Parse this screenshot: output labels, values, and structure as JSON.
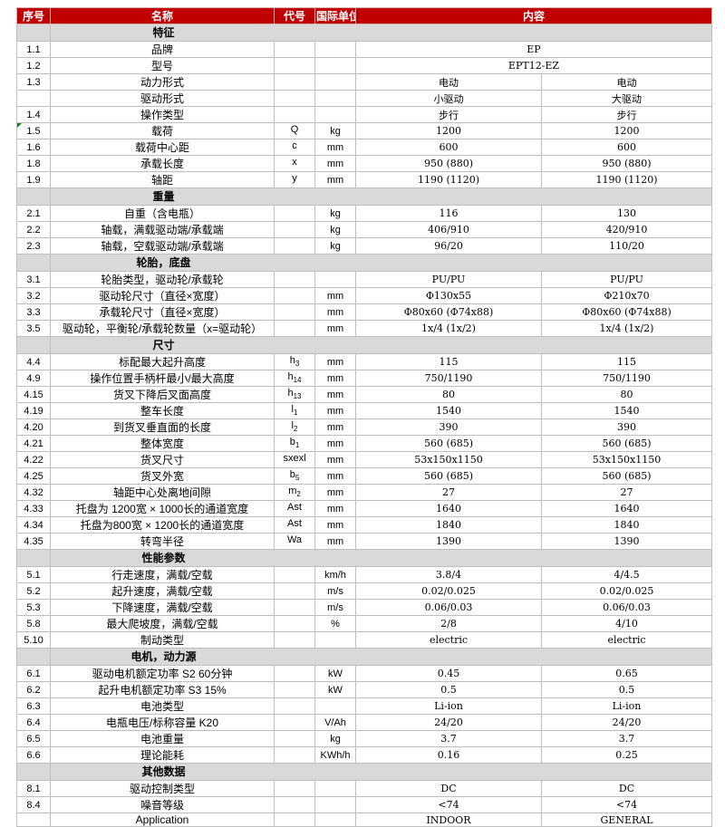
{
  "colors": {
    "header_bg": "#c00000",
    "header_text": "#ffffff",
    "section_bg": "#d9d9d9",
    "grid_border": "#bfbfbf",
    "comment_marker_green": "#1e7b1e"
  },
  "table": {
    "columns": [
      "序号",
      "名称",
      "代号",
      "国际单位",
      "内容"
    ],
    "sections": [
      {
        "title": "特征",
        "rows": [
          {
            "no": "1.1",
            "name": "品牌",
            "code": "",
            "unit": "",
            "values": [
              "EP"
            ]
          },
          {
            "no": "1.2",
            "name": "型号",
            "code": "",
            "unit": "",
            "values": [
              "EPT12-EZ"
            ]
          },
          {
            "no": "1.3",
            "name": "动力形式",
            "code": "",
            "unit": "",
            "values": [
              "电动",
              "电动"
            ]
          },
          {
            "no": "",
            "name": "驱动形式",
            "code": "",
            "unit": "",
            "values": [
              "小驱动",
              "大驱动"
            ]
          },
          {
            "no": "1.4",
            "name": "操作类型",
            "code": "",
            "unit": "",
            "values": [
              "步行",
              "步行"
            ]
          },
          {
            "no": "1.5",
            "name": "载荷",
            "code": "Q",
            "unit": "kg",
            "values": [
              "1200",
              "1200"
            ],
            "marker": true
          },
          {
            "no": "1.6",
            "name": "载荷中心距",
            "code": "c",
            "unit": "mm",
            "values": [
              "600",
              "600"
            ]
          },
          {
            "no": "1.8",
            "name": "承载长度",
            "code": "x",
            "unit": "mm",
            "values": [
              "950 (880)",
              "950 (880)"
            ]
          },
          {
            "no": "1.9",
            "name": "轴距",
            "code": "y",
            "unit": "mm",
            "values": [
              "1190 (1120)",
              "1190 (1120)"
            ]
          }
        ]
      },
      {
        "title": "重量",
        "rows": [
          {
            "no": "2.1",
            "name": "自重（含电瓶）",
            "code": "",
            "unit": "kg",
            "values": [
              "116",
              "130"
            ]
          },
          {
            "no": "2.2",
            "name": "轴载，满载驱动端/承载端",
            "code": "",
            "unit": "kg",
            "values": [
              "406/910",
              "420/910"
            ]
          },
          {
            "no": "2.3",
            "name": "轴载，空载驱动端/承载端",
            "code": "",
            "unit": "kg",
            "values": [
              "96/20",
              "110/20"
            ]
          }
        ]
      },
      {
        "title": "轮胎，底盘",
        "rows": [
          {
            "no": "3.1",
            "name": "轮胎类型，驱动轮/承载轮",
            "code": "",
            "unit": "",
            "values": [
              "PU/PU",
              "PU/PU"
            ]
          },
          {
            "no": "3.2",
            "name": "驱动轮尺寸（直径×宽度）",
            "code": "",
            "unit": "mm",
            "values": [
              "Φ130x55",
              "Φ210x70"
            ]
          },
          {
            "no": "3.3",
            "name": "承载轮尺寸（直径×宽度）",
            "code": "",
            "unit": "mm",
            "values": [
              "Φ80x60 (Φ74x88)",
              "Φ80x60 (Φ74x88)"
            ]
          },
          {
            "no": "3.5",
            "name": "驱动轮，平衡轮/承载轮数量（x=驱动轮）",
            "code": "",
            "unit": "mm",
            "values": [
              "1x/4 (1x/2)",
              "1x/4 (1x/2)"
            ]
          }
        ]
      },
      {
        "title": "尺寸",
        "rows": [
          {
            "no": "4.4",
            "name": "标配最大起升高度",
            "code": "h",
            "sub": "3",
            "unit": "mm",
            "values": [
              "115",
              "115"
            ]
          },
          {
            "no": "4.9",
            "name": "操作位置手柄杆最小/最大高度",
            "code": "h",
            "sub": "14",
            "unit": "mm",
            "values": [
              "750/1190",
              "750/1190"
            ]
          },
          {
            "no": "4.15",
            "name": "货叉下降后叉面高度",
            "code": "h",
            "sub": "13",
            "unit": "mm",
            "values": [
              "80",
              "80"
            ]
          },
          {
            "no": "4.19",
            "name": "整车长度",
            "code": "l",
            "sub": "1",
            "unit": "mm",
            "values": [
              "1540",
              "1540"
            ]
          },
          {
            "no": "4.20",
            "name": "到货叉垂直面的长度",
            "code": "l",
            "sub": "2",
            "unit": "mm",
            "values": [
              "390",
              "390"
            ]
          },
          {
            "no": "4.21",
            "name": "整体宽度",
            "code": "b",
            "sub": "1",
            "unit": "mm",
            "values": [
              "560 (685)",
              "560 (685)"
            ]
          },
          {
            "no": "4.22",
            "name": "货叉尺寸",
            "code": "sxexl",
            "unit": "mm",
            "values": [
              "53x150x1150",
              "53x150x1150"
            ]
          },
          {
            "no": "4.25",
            "name": "货叉外宽",
            "code": "b",
            "sub": "5",
            "unit": "mm",
            "values": [
              "560 (685)",
              "560 (685)"
            ]
          },
          {
            "no": "4.32",
            "name": "轴距中心处离地间隙",
            "code": "m",
            "sub": "2",
            "unit": "mm",
            "values": [
              "27",
              "27"
            ]
          },
          {
            "no": "4.33",
            "name": "托盘为 1200宽 × 1000长的通道宽度",
            "code": "Ast",
            "unit": "mm",
            "values": [
              "1640",
              "1640"
            ]
          },
          {
            "no": "4.34",
            "name": "托盘为800宽 × 1200长的通道宽度",
            "code": "Ast",
            "unit": "mm",
            "values": [
              "1840",
              "1840"
            ]
          },
          {
            "no": "4.35",
            "name": "转弯半径",
            "code": "Wa",
            "unit": "mm",
            "values": [
              "1390",
              "1390"
            ]
          }
        ]
      },
      {
        "title": "性能参数",
        "rows": [
          {
            "no": "5.1",
            "name": "行走速度，满载/空载",
            "code": "",
            "unit": "km/h",
            "values": [
              "3.8/4",
              "4/4.5"
            ]
          },
          {
            "no": "5.2",
            "name": "起升速度，满载/空载",
            "code": "",
            "unit": "m/s",
            "values": [
              "0.02/0.025",
              "0.02/0.025"
            ]
          },
          {
            "no": "5.3",
            "name": "下降速度，满载/空载",
            "code": "",
            "unit": "m/s",
            "values": [
              "0.06/0.03",
              "0.06/0.03"
            ]
          },
          {
            "no": "5.8",
            "name": "最大爬坡度，满载/空载",
            "code": "",
            "unit": "%",
            "values": [
              "2/8",
              "4/10"
            ]
          },
          {
            "no": "5.10",
            "name": "制动类型",
            "code": "",
            "unit": "",
            "values": [
              "electric",
              "electric"
            ]
          }
        ]
      },
      {
        "title": "电机，动力源",
        "rows": [
          {
            "no": "6.1",
            "name": "驱动电机额定功率 S2 60分钟",
            "code": "",
            "unit": "kW",
            "values": [
              "0.45",
              "0.65"
            ]
          },
          {
            "no": "6.2",
            "name": "起升电机额定功率 S3 15%",
            "code": "",
            "unit": "kW",
            "values": [
              "0.5",
              "0.5"
            ]
          },
          {
            "no": "6.3",
            "name": "电池类型",
            "code": "",
            "unit": "",
            "values": [
              "Li-ion",
              "Li-ion"
            ]
          },
          {
            "no": "6.4",
            "name": "电瓶电压/标称容量 K20",
            "code": "",
            "unit": "V/Ah",
            "values": [
              "24/20",
              "24/20"
            ]
          },
          {
            "no": "6.5",
            "name": "电池重量",
            "code": "",
            "unit": "kg",
            "values": [
              "3.7",
              "3.7"
            ]
          },
          {
            "no": "6.6",
            "name": "理论能耗",
            "code": "",
            "unit": "KWh/h",
            "values": [
              "0.16",
              "0.25"
            ]
          }
        ]
      },
      {
        "title": "其他数据",
        "rows": [
          {
            "no": "8.1",
            "name": "驱动控制类型",
            "code": "",
            "unit": "",
            "values": [
              "DC",
              "DC"
            ]
          },
          {
            "no": "8.4",
            "name": "噪音等级",
            "code": "",
            "unit": "",
            "values": [
              "<74",
              "<74"
            ]
          },
          {
            "no": "",
            "name": "Application",
            "code": "",
            "unit": "",
            "values": [
              "INDOOR",
              "GENERAL"
            ]
          }
        ]
      }
    ]
  }
}
